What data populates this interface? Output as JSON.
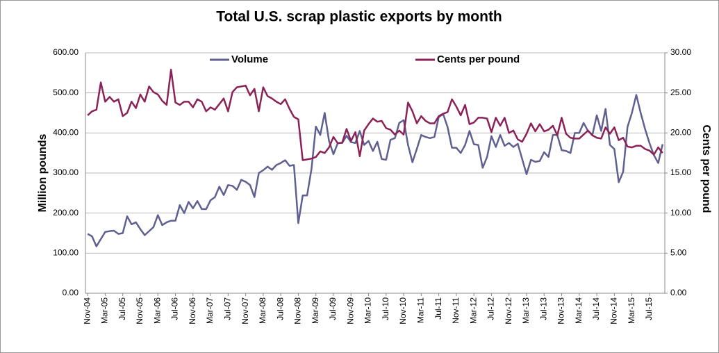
{
  "chart_data": {
    "type": "line",
    "title": "Total U.S. scrap plastic exports by month",
    "ylabel": "Million pounds",
    "y2label": "Cents per pound",
    "categories": [
      "Nov-04",
      null,
      null,
      null,
      "Mar-05",
      null,
      null,
      null,
      "Jul-05",
      null,
      null,
      null,
      "Nov-05",
      null,
      null,
      null,
      "Mar-06",
      null,
      null,
      null,
      "Jul-06",
      null,
      null,
      null,
      "Nov-06",
      null,
      null,
      null,
      "Mar-07",
      null,
      null,
      null,
      "Jul-07",
      null,
      null,
      null,
      "Nov-07",
      null,
      null,
      null,
      "Mar-08",
      null,
      null,
      null,
      "Jul-08",
      null,
      null,
      null,
      "Nov-08",
      null,
      null,
      null,
      "Mar-09",
      null,
      null,
      null,
      "Jul-09",
      null,
      null,
      null,
      "Nov-09",
      null,
      null,
      null,
      "Mar-10",
      null,
      null,
      null,
      "Jul-10",
      null,
      null,
      null,
      "Nov-10",
      null,
      null,
      null,
      "Mar-11",
      null,
      null,
      null,
      "Jul-11",
      null,
      null,
      null,
      "Nov-11",
      null,
      null,
      null,
      "Mar-12",
      null,
      null,
      null,
      "Jul-12",
      null,
      null,
      null,
      "Nov-12",
      null,
      null,
      null,
      "Mar-13",
      null,
      null,
      null,
      "Jul-13",
      null,
      null,
      null,
      "Nov-13",
      null,
      null,
      null,
      "Mar-14",
      null,
      null,
      null,
      "Jul-14",
      null,
      null,
      null,
      "Nov-14",
      null,
      null,
      null,
      "Mar-15",
      null,
      null,
      null,
      "Jul-15",
      null,
      null,
      null
    ],
    "series": [
      {
        "name": "Volume",
        "color": "#5f5f92",
        "values": [
          148,
          142,
          117,
          135,
          153,
          155,
          156,
          148,
          150,
          192,
          172,
          177,
          160,
          145,
          155,
          165,
          195,
          170,
          177,
          181,
          181,
          220,
          200,
          228,
          212,
          230,
          210,
          210,
          232,
          240,
          266,
          245,
          270,
          268,
          258,
          283,
          278,
          270,
          240,
          300,
          307,
          316,
          308,
          320,
          325,
          332,
          318,
          320,
          175,
          244,
          244,
          310,
          416,
          395,
          450,
          380,
          347,
          375,
          375,
          393,
          377,
          375,
          405,
          370,
          380,
          355,
          378,
          335,
          333,
          383,
          387,
          425,
          432,
          370,
          327,
          360,
          395,
          390,
          387,
          390,
          440,
          447,
          415,
          363,
          363,
          350,
          370,
          405,
          372,
          370,
          313,
          340,
          392,
          365,
          395,
          368,
          375,
          365,
          373,
          335,
          297,
          333,
          328,
          330,
          352,
          340,
          395,
          395,
          357,
          355,
          350,
          400,
          400,
          425,
          405,
          395,
          444,
          405,
          460,
          370,
          360,
          277,
          303,
          415,
          450,
          495,
          450,
          410,
          375,
          345,
          325,
          372
        ]
      },
      {
        "name": "Cents per pound",
        "color": "#8b2257",
        "axis": "y2",
        "values": [
          22.2,
          22.7,
          22.9,
          26.3,
          23.9,
          24.5,
          23.9,
          24.2,
          22.1,
          22.5,
          23.9,
          23.1,
          24.8,
          23.9,
          25.8,
          25.1,
          24.8,
          24.0,
          23.5,
          27.9,
          23.8,
          23.5,
          23.9,
          23.9,
          23.2,
          24.2,
          23.9,
          22.7,
          23.2,
          22.9,
          23.6,
          24.3,
          22.7,
          25.1,
          25.7,
          25.8,
          25.9,
          24.7,
          25.5,
          22.7,
          25.7,
          24.6,
          24.3,
          23.9,
          23.6,
          24.2,
          23.0,
          22.0,
          21.7,
          16.6,
          16.7,
          16.8,
          17.0,
          17.7,
          17.5,
          18.2,
          19.5,
          18.7,
          18.8,
          20.5,
          19.0,
          20.1,
          17.1,
          20.3,
          21.1,
          21.8,
          21.4,
          21.5,
          20.6,
          20.4,
          19.8,
          20.3,
          19.8,
          23.8,
          22.7,
          21.2,
          22.1,
          21.5,
          21.2,
          21.2,
          22.1,
          22.4,
          22.6,
          24.2,
          23.3,
          22.2,
          23.5,
          21.1,
          21.3,
          21.9,
          21.9,
          21.8,
          20.1,
          21.9,
          20.9,
          21.9,
          20.0,
          20.3,
          19.2,
          18.9,
          19.9,
          21.2,
          20.2,
          21.1,
          20.2,
          20.4,
          20.9,
          19.7,
          21.9,
          19.9,
          19.4,
          19.3,
          19.3,
          19.8,
          20.3,
          19.7,
          19.4,
          19.3,
          20.7,
          19.9,
          20.7,
          19.1,
          19.4,
          18.3,
          18.2,
          18.4,
          18.4,
          18.0,
          17.8,
          17.3,
          18.2,
          17.5
        ]
      }
    ],
    "ylim": [
      0,
      600
    ],
    "yticks": [
      {
        "value": 0,
        "label": "0.00"
      },
      {
        "value": 100,
        "label": "100.00"
      },
      {
        "value": 200,
        "label": "200.00"
      },
      {
        "value": 300,
        "label": "300.00"
      },
      {
        "value": 400,
        "label": "400.00"
      },
      {
        "value": 500,
        "label": "500.00"
      },
      {
        "value": 600,
        "label": "600.00"
      }
    ],
    "y2lim": [
      0,
      30
    ],
    "y2ticks": [
      {
        "value": 0,
        "label": "0.00"
      },
      {
        "value": 5,
        "label": "5.00"
      },
      {
        "value": 10,
        "label": "10.00"
      },
      {
        "value": 15,
        "label": "15.00"
      },
      {
        "value": 20,
        "label": "20.00"
      },
      {
        "value": 25,
        "label": "25.00"
      },
      {
        "value": 30,
        "label": "30.00"
      }
    ],
    "grid": true,
    "legend": "top"
  }
}
